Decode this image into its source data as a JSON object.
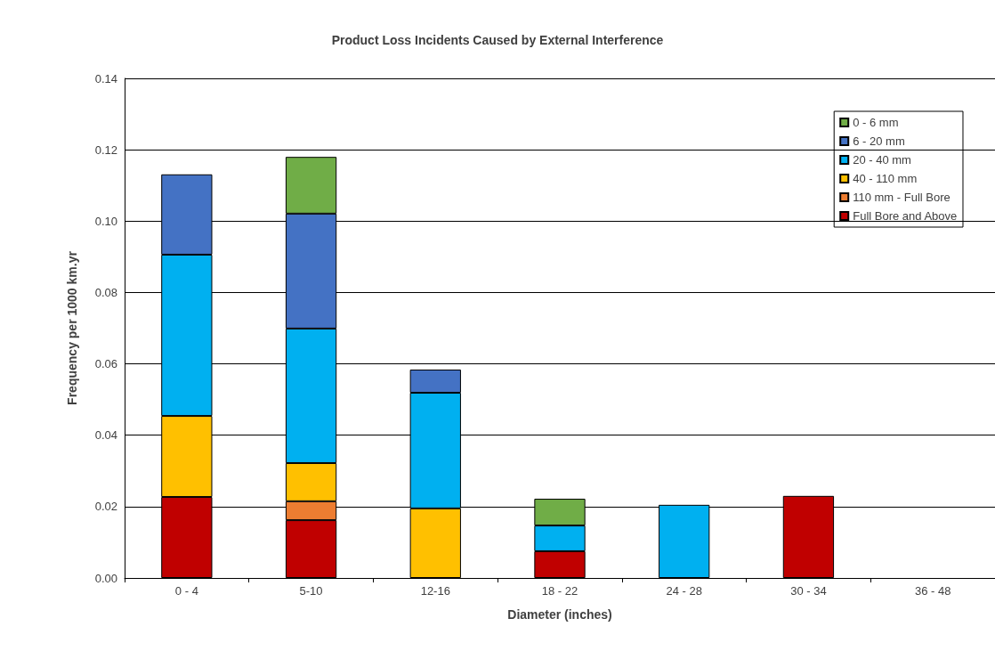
{
  "chart_data": {
    "type": "bar",
    "title": "Product Loss Incidents Caused by External Interference",
    "xlabel": "Diameter (inches)",
    "ylabel": "Frequency per 1000 km.yr",
    "categories": [
      "0 - 4",
      "5-10",
      "12-16",
      "18 - 22",
      "24 - 28",
      "30 - 34",
      "36 - 48"
    ],
    "stacked": true,
    "ylim": [
      0,
      0.14
    ],
    "yticks": [
      {
        "value": 0,
        "label": "0.00"
      },
      {
        "value": 0.02,
        "label": "0.02"
      },
      {
        "value": 0.04,
        "label": "0.04"
      },
      {
        "value": 0.06,
        "label": "0.06"
      },
      {
        "value": 0.08,
        "label": "0.08"
      },
      {
        "value": 0.1,
        "label": "0.10"
      },
      {
        "value": 0.12,
        "label": "0.12"
      },
      {
        "value": 0.14,
        "label": "0.14"
      }
    ],
    "grid": "y",
    "legend": "top right",
    "series": [
      {
        "name": "Full Bore and Above",
        "color": "#c00000",
        "values": [
          0.0227,
          0.0162,
          null,
          0.0075,
          null,
          0.023,
          null
        ]
      },
      {
        "name": "110 mm - Full Bore",
        "color": "#ed7d31",
        "values": [
          null,
          0.0053,
          null,
          null,
          null,
          null,
          null
        ]
      },
      {
        "name": "40 - 110 mm",
        "color": "#ffc000",
        "values": [
          0.0227,
          0.0107,
          0.0195,
          null,
          null,
          null,
          null
        ]
      },
      {
        "name": "20 - 40 mm",
        "color": "#00b0f0",
        "values": [
          0.0452,
          0.0377,
          0.0324,
          0.0072,
          0.0205,
          null,
          null
        ]
      },
      {
        "name": "6 - 20 mm",
        "color": "#4472c4",
        "values": [
          0.0225,
          0.0322,
          0.0065,
          null,
          null,
          null,
          null
        ]
      },
      {
        "name": "0 - 6 mm",
        "color": "#70ad47",
        "values": [
          null,
          0.0159,
          null,
          0.0075,
          null,
          null,
          null
        ]
      }
    ]
  }
}
